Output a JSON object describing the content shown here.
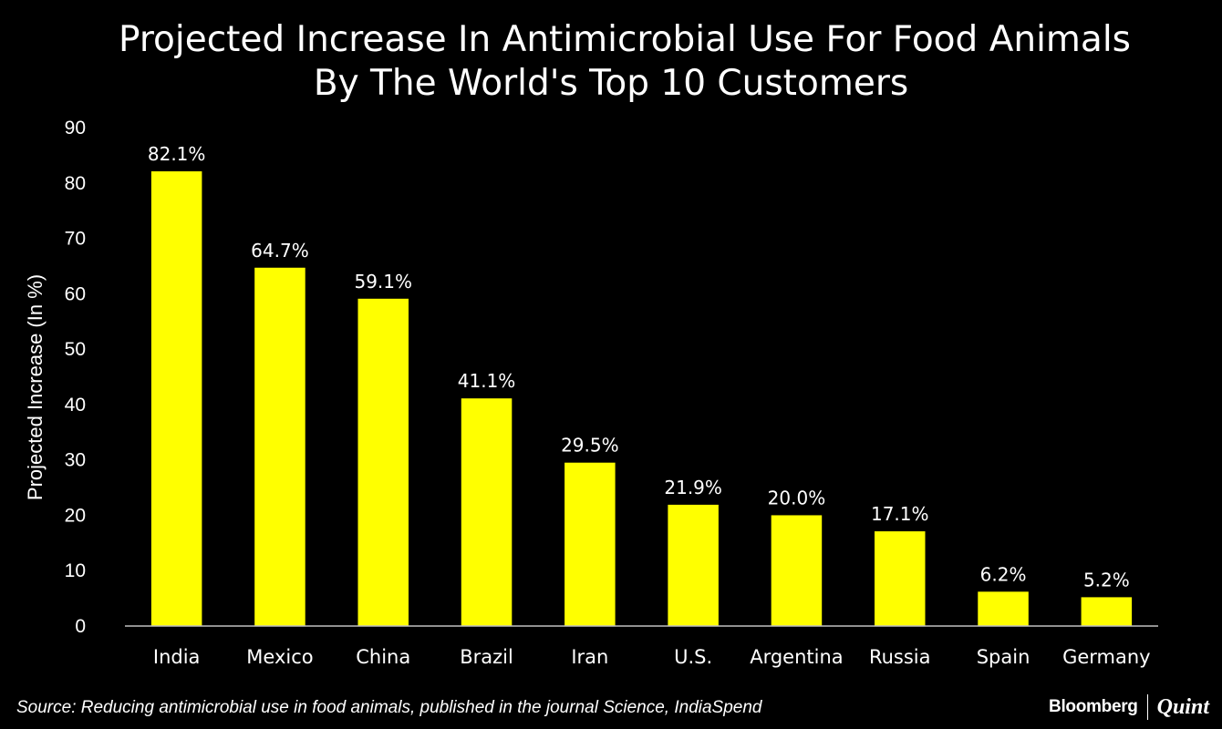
{
  "chart_data": {
    "type": "bar",
    "title_lines": [
      "Projected Increase In Antimicrobial Use For Food Animals",
      "By The World's Top 10 Customers"
    ],
    "ylabel": "Projected Increase (In %)",
    "xlabel": "",
    "ylim": [
      0,
      90
    ],
    "yticks": [
      0,
      10,
      20,
      30,
      40,
      50,
      60,
      70,
      80,
      90
    ],
    "grid": false,
    "categories": [
      "India",
      "Mexico",
      "China",
      "Brazil",
      "Iran",
      "U.S.",
      "Argentina",
      "Russia",
      "Spain",
      "Germany"
    ],
    "values": [
      82.1,
      64.7,
      59.1,
      41.1,
      29.5,
      21.9,
      20.0,
      17.1,
      6.2,
      5.2
    ],
    "data_labels": [
      "82.1%",
      "64.7%",
      "59.1%",
      "41.1%",
      "29.5%",
      "21.9%",
      "20.0%",
      "17.1%",
      "6.2%",
      "5.2%"
    ],
    "bar_color": "#ffff00",
    "background_color": "#000000",
    "text_color": "#ffffff"
  },
  "footer": {
    "source": "Source: Reducing antimicrobial use in food animals, published in the journal Science, IndiaSpend",
    "logo_primary": "Bloomberg",
    "logo_secondary": "Quint"
  }
}
